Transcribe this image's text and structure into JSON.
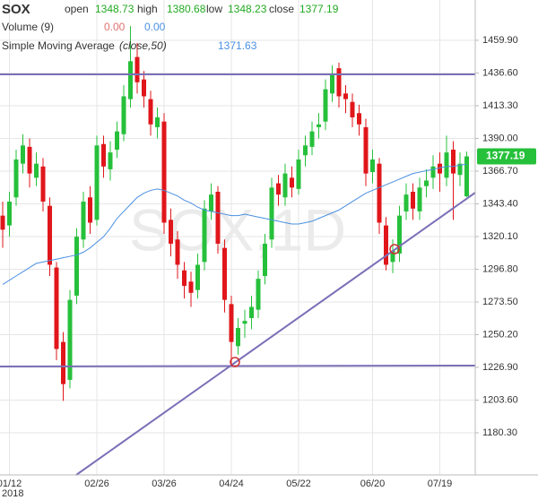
{
  "chart_data": {
    "type": "candlestick",
    "title": "SOX",
    "header_labels": {
      "open": "open",
      "high": "high",
      "low": "low",
      "close": "close"
    },
    "volume_label": "Volume (9)",
    "volume_values": [
      0,
      0
    ],
    "volume_value_labels": [
      "0.00",
      "0.00"
    ],
    "sma_label": "Simple Moving Average",
    "sma_params": "(close,50)",
    "watermark": "SOX,1D",
    "year_label": "2018",
    "up_color": "#26c03b",
    "down_color": "#e0161b",
    "categories": [
      null,
      "01/12",
      null,
      null,
      null,
      null,
      null,
      null,
      null,
      null,
      null,
      null,
      null,
      null,
      "02/26",
      null,
      null,
      null,
      null,
      null,
      null,
      null,
      null,
      null,
      "03/26",
      null,
      null,
      null,
      null,
      null,
      null,
      null,
      null,
      null,
      "04/24",
      null,
      null,
      null,
      null,
      null,
      null,
      null,
      null,
      null,
      "05/22",
      null,
      null,
      null,
      null,
      null,
      null,
      null,
      null,
      null,
      null,
      "06/20",
      null,
      null,
      null,
      null,
      null,
      null,
      null,
      null,
      null,
      "07/19",
      null,
      null,
      null,
      null
    ],
    "open": [
      1335,
      1328,
      1348,
      1372,
      1384,
      1362,
      1370,
      1342,
      1298,
      1245,
      1218,
      1278,
      1318,
      1348,
      1332,
      1386,
      1368,
      1382,
      1393,
      1418,
      1448,
      1432,
      1418,
      1398,
      1402,
      1332,
      1318,
      1296,
      1288,
      1282,
      1302,
      1338,
      1352,
      1312,
      1272,
      1242,
      1258,
      1262,
      1268,
      1292,
      1318,
      1358,
      1348,
      1362,
      1354,
      1378,
      1384,
      1398,
      1402,
      1422,
      1440,
      1422,
      1416,
      1408,
      1398,
      1366,
      1372,
      1328,
      1302,
      1308,
      1338,
      1352,
      1338,
      1356,
      1362,
      1372,
      1362,
      1382,
      1364,
      1348.73
    ],
    "high": [
      1345,
      1352,
      1382,
      1393,
      1390,
      1380,
      1376,
      1348,
      1302,
      1252,
      1282,
      1326,
      1352,
      1356,
      1392,
      1392,
      1388,
      1402,
      1428,
      1470,
      1458,
      1438,
      1424,
      1412,
      1408,
      1340,
      1324,
      1302,
      1295,
      1308,
      1346,
      1358,
      1356,
      1318,
      1278,
      1262,
      1268,
      1278,
      1296,
      1322,
      1362,
      1364,
      1372,
      1370,
      1382,
      1392,
      1402,
      1408,
      1432,
      1442,
      1444,
      1428,
      1422,
      1414,
      1404,
      1382,
      1376,
      1334,
      1318,
      1342,
      1358,
      1358,
      1362,
      1368,
      1378,
      1380,
      1392,
      1388,
      1380,
      1380.68
    ],
    "low": [
      1312,
      1320,
      1342,
      1365,
      1355,
      1356,
      1338,
      1292,
      1232,
      1203,
      1212,
      1272,
      1312,
      1322,
      1328,
      1362,
      1360,
      1376,
      1388,
      1412,
      1422,
      1412,
      1392,
      1390,
      1322,
      1306,
      1290,
      1276,
      1270,
      1276,
      1296,
      1332,
      1308,
      1266,
      1228,
      1236,
      1248,
      1254,
      1262,
      1286,
      1312,
      1342,
      1342,
      1348,
      1350,
      1370,
      1378,
      1390,
      1396,
      1416,
      1412,
      1408,
      1398,
      1392,
      1356,
      1358,
      1322,
      1296,
      1294,
      1302,
      1332,
      1332,
      1332,
      1348,
      1354,
      1352,
      1356,
      1332,
      1356,
      1348.23
    ],
    "close": [
      1325,
      1345,
      1375,
      1385,
      1365,
      1372,
      1345,
      1300,
      1240,
      1215,
      1275,
      1320,
      1345,
      1330,
      1385,
      1370,
      1380,
      1395,
      1420,
      1445,
      1430,
      1420,
      1400,
      1405,
      1330,
      1315,
      1300,
      1285,
      1280,
      1300,
      1340,
      1350,
      1315,
      1275,
      1245,
      1255,
      1260,
      1270,
      1290,
      1315,
      1355,
      1350,
      1365,
      1355,
      1375,
      1385,
      1395,
      1400,
      1425,
      1435,
      1420,
      1418,
      1405,
      1400,
      1365,
      1375,
      1330,
      1300,
      1310,
      1335,
      1350,
      1340,
      1355,
      1360,
      1370,
      1365,
      1380,
      1365,
      1372,
      1377.19
    ],
    "sma": {
      "color": "#4a90e2",
      "values": [
        1286,
        1289,
        1292,
        1295,
        1298,
        1301,
        1302,
        1303,
        1304,
        1305,
        1306,
        1307,
        1309,
        1312,
        1316,
        1320,
        1326,
        1333,
        1338,
        1343,
        1348,
        1351,
        1353,
        1354,
        1353,
        1351,
        1349,
        1346,
        1344,
        1341,
        1339,
        1338,
        1337,
        1336,
        1335,
        1335,
        1336,
        1335,
        1334,
        1333,
        1332,
        1331,
        1330,
        1329,
        1329,
        1330,
        1331,
        1333,
        1335,
        1337,
        1339,
        1342,
        1345,
        1348,
        1351,
        1353,
        1355,
        1357,
        1359,
        1361,
        1363,
        1365,
        1366,
        1367,
        1368,
        1369,
        1370,
        1370,
        1371,
        1371.63
      ]
    },
    "ylim": [
      1150.3,
      1488.6
    ],
    "yticks": [
      {
        "value": 1180.3,
        "label": "1180.30"
      },
      {
        "value": 1203.6,
        "label": "1203.60"
      },
      {
        "value": 1226.9,
        "label": "1226.90"
      },
      {
        "value": 1250.2,
        "label": "1250.20"
      },
      {
        "value": 1273.5,
        "label": "1273.50"
      },
      {
        "value": 1296.8,
        "label": "1296.80"
      },
      {
        "value": 1320.1,
        "label": "1320.10"
      },
      {
        "value": 1343.4,
        "label": "1343.40"
      },
      {
        "value": 1366.7,
        "label": "1366.70"
      },
      {
        "value": 1390,
        "label": "1390.00"
      },
      {
        "value": 1413.3,
        "label": "1413.30"
      },
      {
        "value": 1436.6,
        "label": "1436.60"
      },
      {
        "value": 1459.9,
        "label": "1459.90"
      }
    ],
    "grid": true
  }
}
